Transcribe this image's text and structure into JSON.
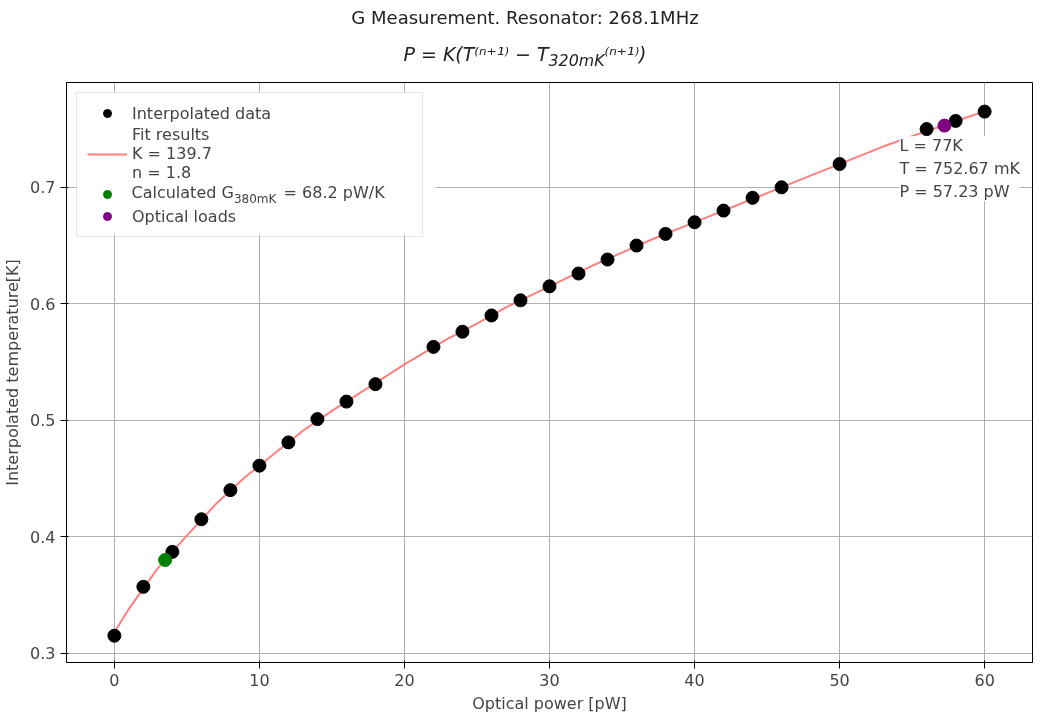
{
  "chart_data": {
    "type": "scatter",
    "title": "G Measurement. Resonator: 268.1MHz",
    "subtitle": "P = K(T⁽ⁿ⁺¹⁾ − T$_{320mK}$⁽ⁿ⁺¹⁾)",
    "xlabel": "Optical power [pW]",
    "ylabel": "Interpolated temperature[K]",
    "series": [
      {
        "name": "Interpolated data",
        "marker": "circle",
        "color": "#000000",
        "x": [
          0,
          2,
          4,
          6,
          8,
          10,
          12,
          14,
          16,
          18,
          22,
          24,
          26,
          28,
          30,
          32,
          34,
          36,
          38,
          40,
          42,
          44,
          46,
          50,
          56,
          58,
          60
        ],
        "values": [
          0.315,
          0.357,
          0.387,
          0.415,
          0.44,
          0.461,
          0.481,
          0.501,
          0.516,
          0.531,
          0.563,
          0.576,
          0.59,
          0.603,
          0.615,
          0.626,
          0.638,
          0.65,
          0.66,
          0.67,
          0.68,
          0.691,
          0.7,
          0.72,
          0.75,
          0.757,
          0.765
        ]
      },
      {
        "name": "Fit results\nK = 139.7\nn = 1.8",
        "type": "line",
        "color": "#ff7f7f",
        "x": [
          0,
          1,
          3,
          5,
          7,
          9,
          11,
          13,
          15,
          17,
          20,
          23,
          25,
          27,
          29,
          31,
          33,
          35,
          37,
          39,
          41,
          43,
          45,
          48,
          53,
          55,
          59,
          60
        ],
        "values": [
          0.318,
          0.338,
          0.373,
          0.401,
          0.428,
          0.451,
          0.471,
          0.491,
          0.508,
          0.524,
          0.548,
          0.57,
          0.583,
          0.597,
          0.609,
          0.621,
          0.633,
          0.644,
          0.655,
          0.665,
          0.675,
          0.685,
          0.695,
          0.71,
          0.735,
          0.744,
          0.761,
          0.765
        ]
      },
      {
        "name": "Calculated G$_{380mK}$ =  68.2 pW/K",
        "marker": "circle",
        "color": "#008000",
        "x": [
          3.5
        ],
        "values": [
          0.38
        ]
      },
      {
        "name": "Optical loads",
        "marker": "circle",
        "color": "#800080",
        "x": [
          57.23
        ],
        "values": [
          0.753
        ]
      }
    ],
    "annotations": [
      {
        "text": "L = 77K\nT = 752.67 mK\nP = 57.23 pW",
        "x": 57.23,
        "y": 0.7527
      }
    ],
    "xlim": [
      -3.3,
      63.3
    ],
    "ylim": [
      0.292,
      0.79
    ],
    "xticks": [
      0,
      10,
      20,
      30,
      40,
      50,
      60
    ],
    "yticks": [
      0.3,
      0.4,
      0.5,
      0.6,
      0.7
    ],
    "grid": true,
    "legend": "top left"
  }
}
